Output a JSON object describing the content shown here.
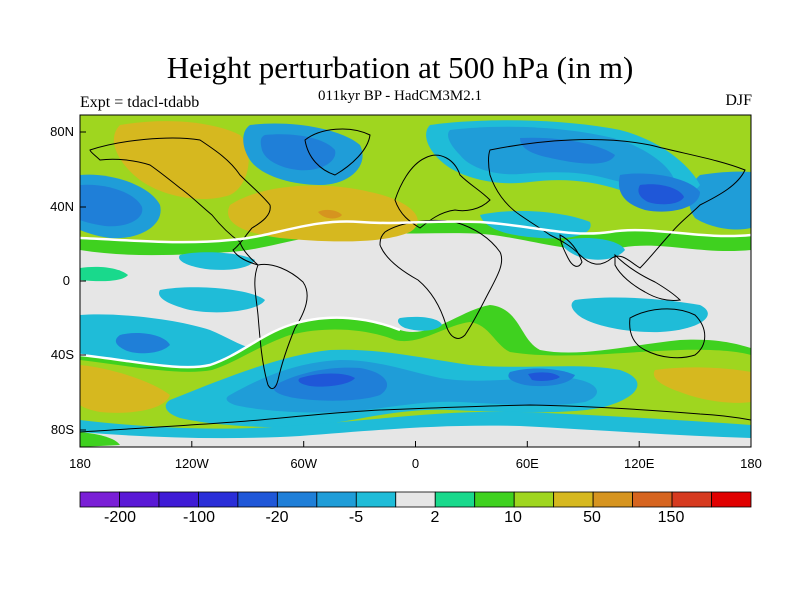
{
  "title": "Height perturbation at 500 hPa (in m)",
  "subtitle": "011kyr BP - HadCM3M2.1",
  "experiment_label": "Expt = tdacl-tdabb",
  "season_label": "DJF",
  "axes": {
    "lat_ticks": [
      "80N",
      "40N",
      "0",
      "40S",
      "80S"
    ],
    "lon_ticks": [
      "180",
      "120W",
      "60W",
      "0",
      "60E",
      "120E",
      "180"
    ]
  },
  "colorbar": {
    "colors": [
      "#7a1fd6",
      "#5a19d6",
      "#3f1bd6",
      "#2a2ed8",
      "#1f57d8",
      "#1f7fd8",
      "#1f9dd8",
      "#1fbcd8",
      "#e6e6e6",
      "#19d98c",
      "#3fd11f",
      "#9fd61f",
      "#d6b81f",
      "#d6941f",
      "#d6641f",
      "#d63a1f",
      "#e00000"
    ],
    "labels": [
      "-200",
      "-100",
      "-20",
      "-5",
      "2",
      "10",
      "50",
      "150"
    ]
  }
}
